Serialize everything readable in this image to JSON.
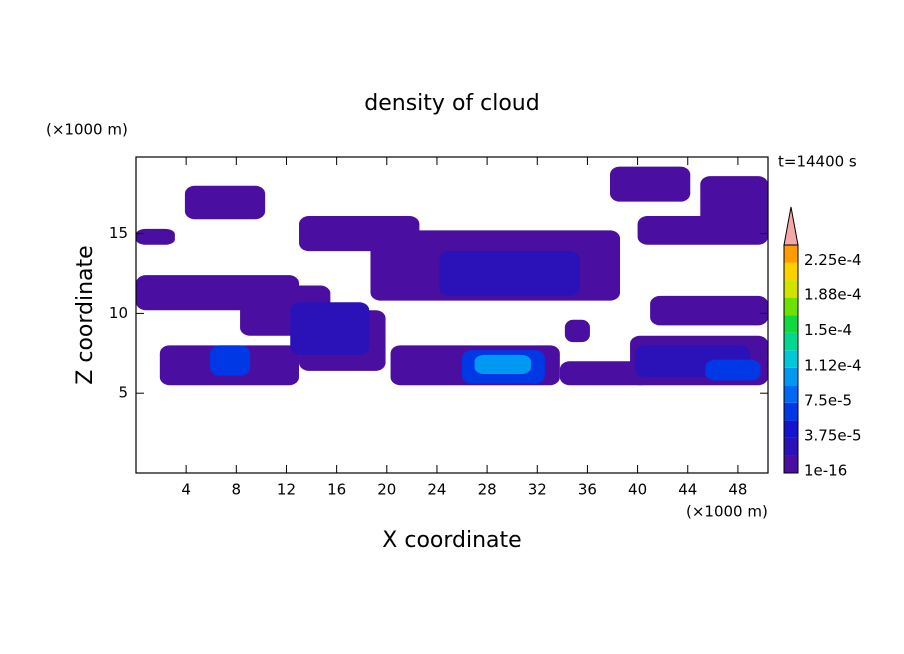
{
  "chart_data": {
    "type": "contour",
    "title": "density of cloud",
    "x_label": "X coordinate",
    "y_label": "Z coordinate",
    "x_unit": "(×1000 m)",
    "y_unit": "(×1000 m)",
    "annotation": "t=14400 s",
    "xlim": [
      0,
      50.4
    ],
    "ylim": [
      0,
      19.8
    ],
    "xticks": [
      4,
      8,
      12,
      16,
      20,
      24,
      28,
      32,
      36,
      40,
      44,
      48
    ],
    "yticks": [
      5,
      10,
      15
    ],
    "regions": [
      {
        "x": [
          3.9,
          10.3
        ],
        "y": [
          15.9,
          18
        ],
        "value": 1e-05
      },
      {
        "x": [
          0,
          3.1
        ],
        "y": [
          14.3,
          15.3
        ],
        "value": 1e-05
      },
      {
        "x": [
          0,
          13
        ],
        "y": [
          10.2,
          12.4
        ],
        "value": 1e-05
      },
      {
        "x": [
          8.3,
          15.5
        ],
        "y": [
          8.6,
          11.75
        ],
        "value": 1e-05
      },
      {
        "x": [
          13,
          19.9
        ],
        "y": [
          6.4,
          10.2
        ],
        "value": 1e-05
      },
      {
        "x": [
          13,
          22.6
        ],
        "y": [
          13.9,
          16.1
        ],
        "value": 1e-05
      },
      {
        "x": [
          18.7,
          38.6
        ],
        "y": [
          10.8,
          15.2
        ],
        "value": 1e-05
      },
      {
        "x": [
          37.8,
          44.2
        ],
        "y": [
          17,
          19.2
        ],
        "value": 1e-05
      },
      {
        "x": [
          45,
          50.4
        ],
        "y": [
          15.2,
          18.6
        ],
        "value": 1e-05
      },
      {
        "x": [
          40,
          50.4
        ],
        "y": [
          14.3,
          16.1
        ],
        "value": 1e-05
      },
      {
        "x": [
          41,
          50.4
        ],
        "y": [
          9.25,
          11.1
        ],
        "value": 1e-05
      },
      {
        "x": [
          1.9,
          13
        ],
        "y": [
          5.5,
          8
        ],
        "value": 1e-05
      },
      {
        "x": [
          20.3,
          33.8
        ],
        "y": [
          5.5,
          8
        ],
        "value": 1e-05
      },
      {
        "x": [
          33.8,
          41
        ],
        "y": [
          5.5,
          7
        ],
        "value": 1e-05
      },
      {
        "x": [
          39.4,
          50.4
        ],
        "y": [
          5.5,
          8.6
        ],
        "value": 1e-05
      },
      {
        "x": [
          34.2,
          36.2
        ],
        "y": [
          8.2,
          9.6
        ],
        "value": 1e-05
      },
      {
        "x": [
          24.2,
          35.4
        ],
        "y": [
          11.1,
          13.9
        ],
        "value": 2.5e-05
      },
      {
        "x": [
          12.3,
          18.6
        ],
        "y": [
          7.4,
          10.7
        ],
        "value": 3e-05
      },
      {
        "x": [
          39.8,
          49
        ],
        "y": [
          6,
          8
        ],
        "value": 3e-05
      },
      {
        "x": [
          5.9,
          9.1
        ],
        "y": [
          6.1,
          8
        ],
        "value": 6e-05
      },
      {
        "x": [
          26,
          32.6
        ],
        "y": [
          5.6,
          7.7
        ],
        "value": 6e-05
      },
      {
        "x": [
          27,
          31.5
        ],
        "y": [
          6.2,
          7.4
        ],
        "value": 0.0001
      },
      {
        "x": [
          45.4,
          49.8
        ],
        "y": [
          5.8,
          7.1
        ],
        "value": 7e-05
      }
    ],
    "colorbar": {
      "lim": [
        1e-16,
        0.00024375
      ],
      "colors": [
        "#4a0fa0",
        "#2a12b8",
        "#1414d0",
        "#0038e6",
        "#0068f2",
        "#0098f0",
        "#00c8d8",
        "#00d890",
        "#10d840",
        "#70e000",
        "#d0e400",
        "#ffd000",
        "#ff9c00"
      ],
      "extend_color": "#f4a8a8",
      "ticks": [
        1e-16,
        {
          "value": 3.75e-05,
          "label": "3.75e-5"
        },
        {
          "value": 7.5e-05,
          "label": "7.5e-5"
        },
        {
          "value": 0.000112,
          "label": "1.12e-4"
        },
        {
          "value": 0.00015,
          "label": "1.5e-4"
        },
        {
          "value": 0.000188,
          "label": "1.88e-4"
        },
        {
          "value": 0.000225,
          "label": "2.25e-4"
        }
      ]
    }
  }
}
